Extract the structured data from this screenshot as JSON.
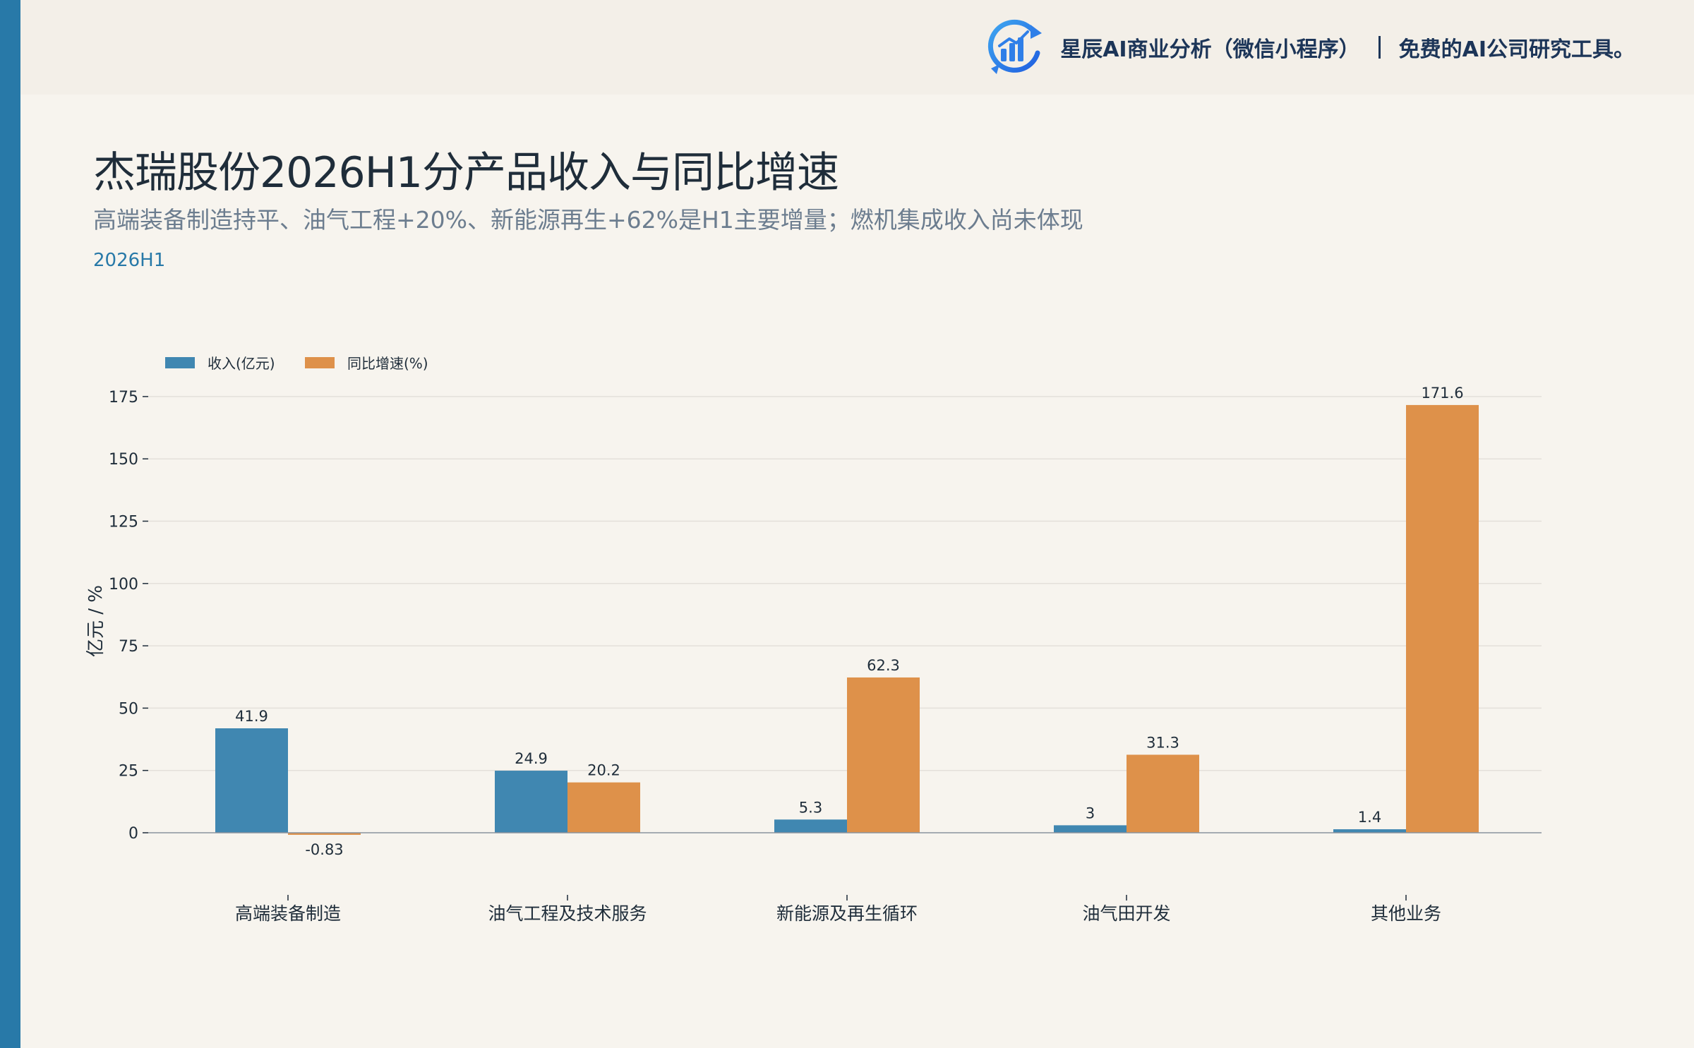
{
  "brand": {
    "name": "星辰AI商业分析（微信小程序）",
    "tagline": "免费的AI公司研究工具。",
    "logo_icon": "bar-chart-refresh-icon"
  },
  "header": {
    "title": "杰瑞股份2026H1分产品收入与同比增速",
    "subtitle": "高端装备制造持平、油气工程+20%、新能源再生+62%是H1主要增量；燃机集成收入尚未体现",
    "period": "2026H1"
  },
  "colors": {
    "revenue": "#4087b1",
    "growth": "#de914a",
    "accent": "#2879a8"
  },
  "chart_data": {
    "type": "bar",
    "categories": [
      "高端装备制造",
      "油气工程及技术服务",
      "新能源及再生循环",
      "油气田开发",
      "其他业务"
    ],
    "series": [
      {
        "name": "收入(亿元)",
        "values": [
          41.9,
          24.9,
          5.3,
          3,
          1.4
        ],
        "labels": [
          "41.9",
          "24.9",
          "5.3",
          "3",
          "1.4"
        ]
      },
      {
        "name": "同比增速(%)",
        "values": [
          -0.83,
          20.2,
          62.3,
          31.3,
          171.6
        ],
        "labels": [
          "-0.83",
          "20.2",
          "62.3",
          "31.3",
          "171.6"
        ]
      }
    ],
    "ylabel": "亿元 / %",
    "xlabel": "",
    "ylim": [
      -25,
      180
    ],
    "yticks": [
      0,
      25,
      50,
      75,
      100,
      125,
      150,
      175
    ],
    "grid": true,
    "legend": "top-left"
  }
}
